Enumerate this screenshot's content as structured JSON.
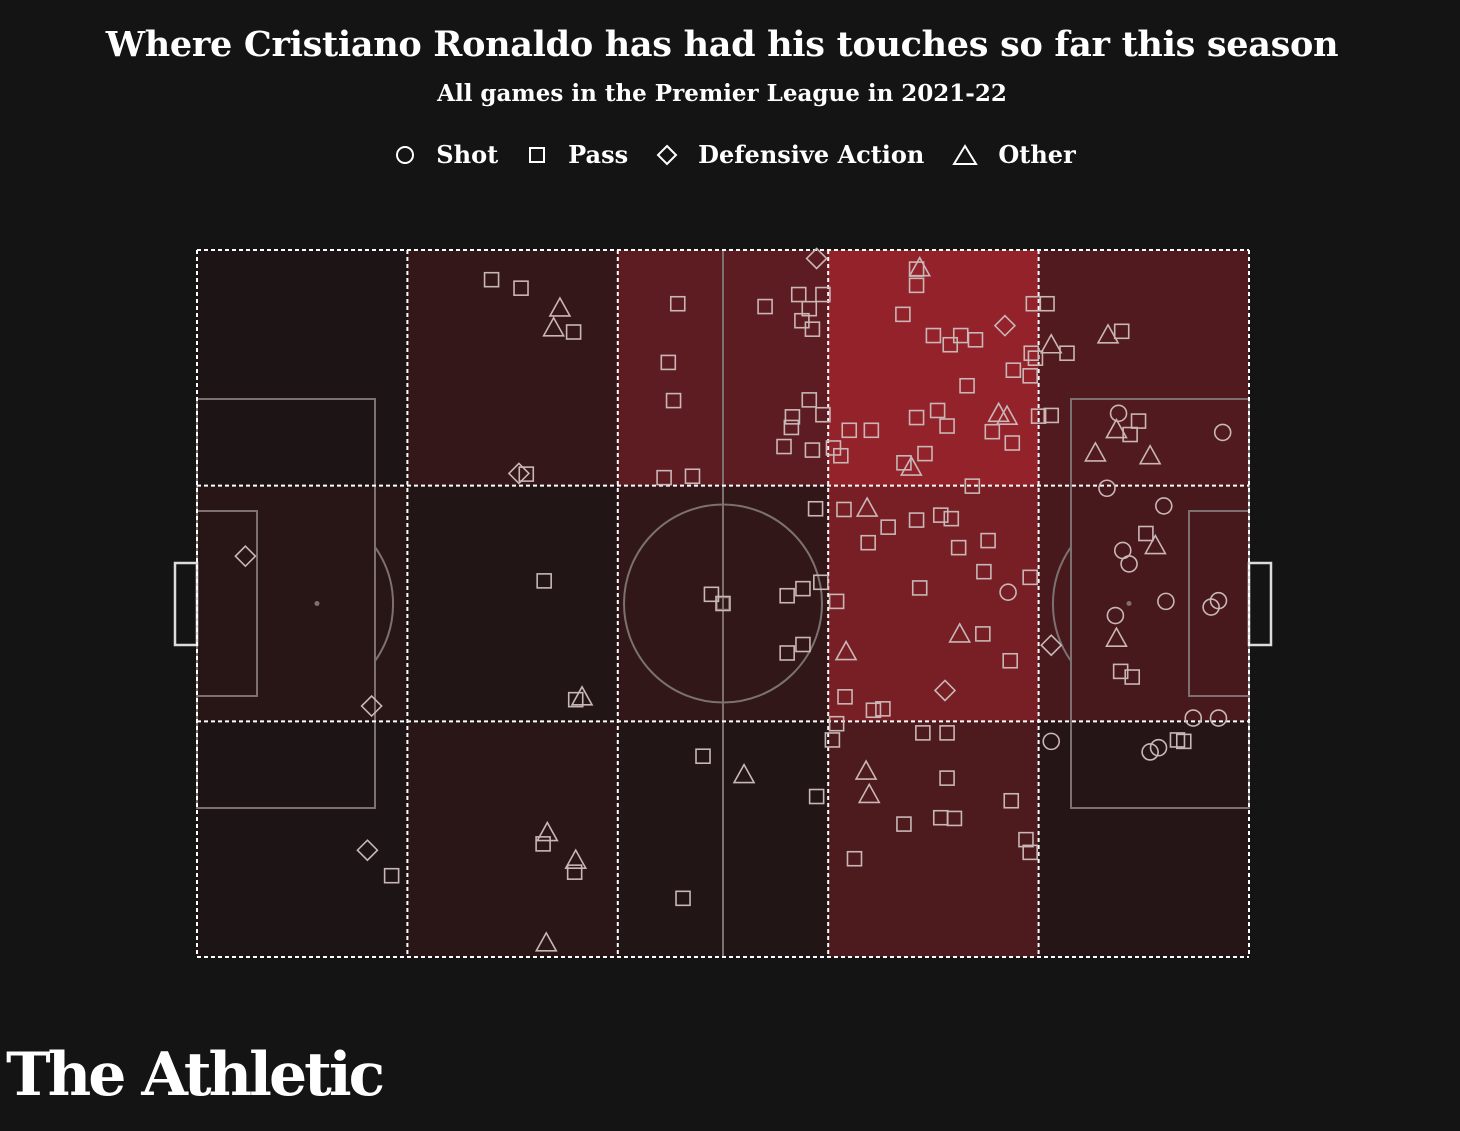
{
  "chart_data": {
    "type": "heatmap",
    "title": "Where Cristiano Ronaldo has had his touches so far this season",
    "subtitle": "All games in the Premier League in 2021-22",
    "legend": [
      {
        "symbol": "circle",
        "label": "Shot"
      },
      {
        "symbol": "square",
        "label": "Pass"
      },
      {
        "symbol": "diamond",
        "label": "Defensive Action"
      },
      {
        "symbol": "triangle",
        "label": "Other"
      }
    ],
    "grid": {
      "columns": 5,
      "rows": 3
    },
    "zone_intensity": [
      [
        0.02,
        0.18,
        0.45,
        0.8,
        0.36
      ],
      [
        0.1,
        0.05,
        0.16,
        0.62,
        0.3
      ],
      [
        0.02,
        0.12,
        0.06,
        0.34,
        0.08
      ]
    ],
    "colors": {
      "background": "#141414",
      "low": "#191414",
      "high": "#b12630",
      "lines": "#7c7070",
      "grid": "#ffffff",
      "marker": "#c9b6b6"
    },
    "touches": [
      {
        "type": "square",
        "x": 28.0,
        "y": 95.8
      },
      {
        "type": "square",
        "x": 30.8,
        "y": 94.6
      },
      {
        "type": "triangle",
        "x": 34.5,
        "y": 91.8
      },
      {
        "type": "triangle",
        "x": 33.9,
        "y": 89.0
      },
      {
        "type": "square",
        "x": 35.8,
        "y": 88.4
      },
      {
        "type": "diamond",
        "x": 30.6,
        "y": 68.4
      },
      {
        "type": "square",
        "x": 31.3,
        "y": 68.3
      },
      {
        "type": "square",
        "x": 45.7,
        "y": 92.4
      },
      {
        "type": "square",
        "x": 44.8,
        "y": 84.1
      },
      {
        "type": "square",
        "x": 45.3,
        "y": 78.7
      },
      {
        "type": "square",
        "x": 44.4,
        "y": 67.8
      },
      {
        "type": "square",
        "x": 47.1,
        "y": 68.0
      },
      {
        "type": "diamond",
        "x": 58.9,
        "y": 98.8
      },
      {
        "type": "square",
        "x": 54.0,
        "y": 92.0
      },
      {
        "type": "square",
        "x": 57.2,
        "y": 93.7
      },
      {
        "type": "square",
        "x": 58.2,
        "y": 91.7
      },
      {
        "type": "square",
        "x": 59.5,
        "y": 93.7
      },
      {
        "type": "square",
        "x": 57.5,
        "y": 90.0
      },
      {
        "type": "square",
        "x": 58.5,
        "y": 88.8
      },
      {
        "type": "square",
        "x": 58.2,
        "y": 78.8
      },
      {
        "type": "square",
        "x": 59.5,
        "y": 76.7
      },
      {
        "type": "square",
        "x": 56.5,
        "y": 74.9
      },
      {
        "type": "square",
        "x": 56.6,
        "y": 76.4
      },
      {
        "type": "square",
        "x": 55.8,
        "y": 72.2
      },
      {
        "type": "square",
        "x": 58.5,
        "y": 71.7
      },
      {
        "type": "square",
        "x": 60.5,
        "y": 72.0
      },
      {
        "type": "square",
        "x": 68.4,
        "y": 97.3
      },
      {
        "type": "triangle",
        "x": 68.7,
        "y": 97.5
      },
      {
        "type": "square",
        "x": 68.4,
        "y": 95.0
      },
      {
        "type": "square",
        "x": 67.1,
        "y": 90.9
      },
      {
        "type": "diamond",
        "x": 76.8,
        "y": 89.3
      },
      {
        "type": "square",
        "x": 70.0,
        "y": 87.9
      },
      {
        "type": "square",
        "x": 72.6,
        "y": 87.9
      },
      {
        "type": "square",
        "x": 74.0,
        "y": 87.3
      },
      {
        "type": "square",
        "x": 71.6,
        "y": 86.6
      },
      {
        "type": "square",
        "x": 77.6,
        "y": 83.0
      },
      {
        "type": "square",
        "x": 79.3,
        "y": 85.4
      },
      {
        "type": "square",
        "x": 79.2,
        "y": 82.2
      },
      {
        "type": "square",
        "x": 73.2,
        "y": 80.8
      },
      {
        "type": "triangle",
        "x": 76.2,
        "y": 76.9
      },
      {
        "type": "triangle",
        "x": 77.0,
        "y": 76.5
      },
      {
        "type": "square",
        "x": 68.4,
        "y": 76.3
      },
      {
        "type": "square",
        "x": 70.4,
        "y": 77.3
      },
      {
        "type": "square",
        "x": 71.3,
        "y": 75.1
      },
      {
        "type": "square",
        "x": 62.0,
        "y": 74.5
      },
      {
        "type": "square",
        "x": 64.1,
        "y": 74.5
      },
      {
        "type": "square",
        "x": 75.6,
        "y": 74.3
      },
      {
        "type": "square",
        "x": 77.5,
        "y": 72.7
      },
      {
        "type": "square",
        "x": 69.2,
        "y": 71.2
      },
      {
        "type": "square",
        "x": 67.2,
        "y": 69.9
      },
      {
        "type": "triangle",
        "x": 67.9,
        "y": 69.3
      },
      {
        "type": "square",
        "x": 61.2,
        "y": 70.9
      },
      {
        "type": "square",
        "x": 73.7,
        "y": 66.6
      },
      {
        "type": "square",
        "x": 79.5,
        "y": 92.4
      },
      {
        "type": "square",
        "x": 80.8,
        "y": 92.4
      },
      {
        "type": "triangle",
        "x": 86.6,
        "y": 88.0
      },
      {
        "type": "square",
        "x": 87.9,
        "y": 88.5
      },
      {
        "type": "triangle",
        "x": 81.2,
        "y": 86.6
      },
      {
        "type": "square",
        "x": 82.7,
        "y": 85.4
      },
      {
        "type": "square",
        "x": 79.7,
        "y": 84.7
      },
      {
        "type": "square",
        "x": 80.0,
        "y": 76.5
      },
      {
        "type": "square",
        "x": 81.2,
        "y": 76.6
      },
      {
        "type": "circle",
        "x": 87.6,
        "y": 76.9
      },
      {
        "type": "triangle",
        "x": 87.4,
        "y": 74.6
      },
      {
        "type": "square",
        "x": 89.5,
        "y": 75.8
      },
      {
        "type": "square",
        "x": 88.7,
        "y": 73.9
      },
      {
        "type": "triangle",
        "x": 85.4,
        "y": 71.3
      },
      {
        "type": "triangle",
        "x": 90.6,
        "y": 70.9
      },
      {
        "type": "circle",
        "x": 97.5,
        "y": 74.2
      },
      {
        "type": "circle",
        "x": 86.5,
        "y": 66.3
      },
      {
        "type": "square",
        "x": 58.8,
        "y": 63.4
      },
      {
        "type": "square",
        "x": 61.5,
        "y": 63.3
      },
      {
        "type": "triangle",
        "x": 63.7,
        "y": 63.5
      },
      {
        "type": "square",
        "x": 65.7,
        "y": 60.8
      },
      {
        "type": "square",
        "x": 68.4,
        "y": 61.8
      },
      {
        "type": "square",
        "x": 70.7,
        "y": 62.5
      },
      {
        "type": "square",
        "x": 71.7,
        "y": 62.0
      },
      {
        "type": "square",
        "x": 63.8,
        "y": 58.6
      },
      {
        "type": "square",
        "x": 72.4,
        "y": 57.9
      },
      {
        "type": "square",
        "x": 75.2,
        "y": 58.9
      },
      {
        "type": "square",
        "x": 74.8,
        "y": 54.5
      },
      {
        "type": "square",
        "x": 68.7,
        "y": 52.2
      },
      {
        "type": "square",
        "x": 60.8,
        "y": 50.3
      },
      {
        "type": "circle",
        "x": 77.1,
        "y": 51.6
      },
      {
        "type": "square",
        "x": 79.2,
        "y": 53.7
      },
      {
        "type": "triangle",
        "x": 72.5,
        "y": 45.7
      },
      {
        "type": "square",
        "x": 74.7,
        "y": 45.7
      },
      {
        "type": "square",
        "x": 77.3,
        "y": 41.9
      },
      {
        "type": "triangle",
        "x": 61.7,
        "y": 43.2
      },
      {
        "type": "diamond",
        "x": 71.1,
        "y": 37.7
      },
      {
        "type": "square",
        "x": 61.6,
        "y": 36.8
      },
      {
        "type": "square",
        "x": 64.3,
        "y": 34.9
      },
      {
        "type": "square",
        "x": 65.2,
        "y": 35.1
      },
      {
        "type": "square",
        "x": 69.0,
        "y": 31.7
      },
      {
        "type": "square",
        "x": 71.3,
        "y": 31.7
      },
      {
        "type": "circle",
        "x": 91.9,
        "y": 63.8
      },
      {
        "type": "square",
        "x": 90.2,
        "y": 59.9
      },
      {
        "type": "circle",
        "x": 88.0,
        "y": 57.5
      },
      {
        "type": "circle",
        "x": 88.6,
        "y": 55.6
      },
      {
        "type": "triangle",
        "x": 91.1,
        "y": 58.2
      },
      {
        "type": "circle",
        "x": 92.1,
        "y": 50.3
      },
      {
        "type": "circle",
        "x": 97.1,
        "y": 50.4
      },
      {
        "type": "circle",
        "x": 96.4,
        "y": 49.5
      },
      {
        "type": "circle",
        "x": 87.3,
        "y": 48.3
      },
      {
        "type": "triangle",
        "x": 87.4,
        "y": 45.1
      },
      {
        "type": "square",
        "x": 87.8,
        "y": 40.4
      },
      {
        "type": "square",
        "x": 88.9,
        "y": 39.6
      },
      {
        "type": "diamond",
        "x": 81.2,
        "y": 44.1
      },
      {
        "type": "circle",
        "x": 94.7,
        "y": 33.8
      },
      {
        "type": "circle",
        "x": 97.1,
        "y": 33.8
      },
      {
        "type": "circle",
        "x": 91.4,
        "y": 29.6
      },
      {
        "type": "circle",
        "x": 81.2,
        "y": 30.5
      },
      {
        "type": "square",
        "x": 93.2,
        "y": 30.7
      },
      {
        "type": "square",
        "x": 59.3,
        "y": 53.0
      },
      {
        "type": "square",
        "x": 57.6,
        "y": 52.1
      },
      {
        "type": "square",
        "x": 56.1,
        "y": 51.1
      },
      {
        "type": "square",
        "x": 48.9,
        "y": 51.3
      },
      {
        "type": "square",
        "x": 50.0,
        "y": 50.0
      },
      {
        "type": "square",
        "x": 57.6,
        "y": 44.2
      },
      {
        "type": "square",
        "x": 56.1,
        "y": 43.0
      },
      {
        "type": "square",
        "x": 33.0,
        "y": 53.2
      },
      {
        "type": "square",
        "x": 36.0,
        "y": 36.4
      },
      {
        "type": "triangle",
        "x": 36.6,
        "y": 36.8
      },
      {
        "type": "diamond",
        "x": 4.6,
        "y": 56.7
      },
      {
        "type": "diamond",
        "x": 16.6,
        "y": 35.5
      },
      {
        "type": "square",
        "x": 60.8,
        "y": 33.0
      },
      {
        "type": "square",
        "x": 60.4,
        "y": 30.7
      },
      {
        "type": "triangle",
        "x": 63.6,
        "y": 26.3
      },
      {
        "type": "triangle",
        "x": 63.9,
        "y": 23.0
      },
      {
        "type": "square",
        "x": 71.3,
        "y": 25.3
      },
      {
        "type": "square",
        "x": 77.4,
        "y": 22.1
      },
      {
        "type": "square",
        "x": 70.7,
        "y": 19.7
      },
      {
        "type": "square",
        "x": 72.0,
        "y": 19.6
      },
      {
        "type": "square",
        "x": 67.2,
        "y": 18.8
      },
      {
        "type": "square",
        "x": 78.8,
        "y": 16.6
      },
      {
        "type": "square",
        "x": 79.2,
        "y": 14.8
      },
      {
        "type": "square",
        "x": 62.5,
        "y": 13.9
      },
      {
        "type": "square",
        "x": 58.9,
        "y": 22.7
      },
      {
        "type": "square",
        "x": 48.1,
        "y": 28.4
      },
      {
        "type": "triangle",
        "x": 52.0,
        "y": 25.8
      },
      {
        "type": "square",
        "x": 46.2,
        "y": 8.3
      },
      {
        "type": "triangle",
        "x": 33.3,
        "y": 17.6
      },
      {
        "type": "square",
        "x": 32.9,
        "y": 16.0
      },
      {
        "type": "triangle",
        "x": 36.0,
        "y": 13.7
      },
      {
        "type": "square",
        "x": 35.9,
        "y": 12.0
      },
      {
        "type": "triangle",
        "x": 33.2,
        "y": 2.0
      },
      {
        "type": "diamond",
        "x": 16.2,
        "y": 15.1
      },
      {
        "type": "square",
        "x": 18.5,
        "y": 11.5
      },
      {
        "type": "circle",
        "x": 90.6,
        "y": 29.0
      },
      {
        "type": "square",
        "x": 93.8,
        "y": 30.5
      }
    ]
  },
  "brand": {
    "name": "The Athletic"
  }
}
